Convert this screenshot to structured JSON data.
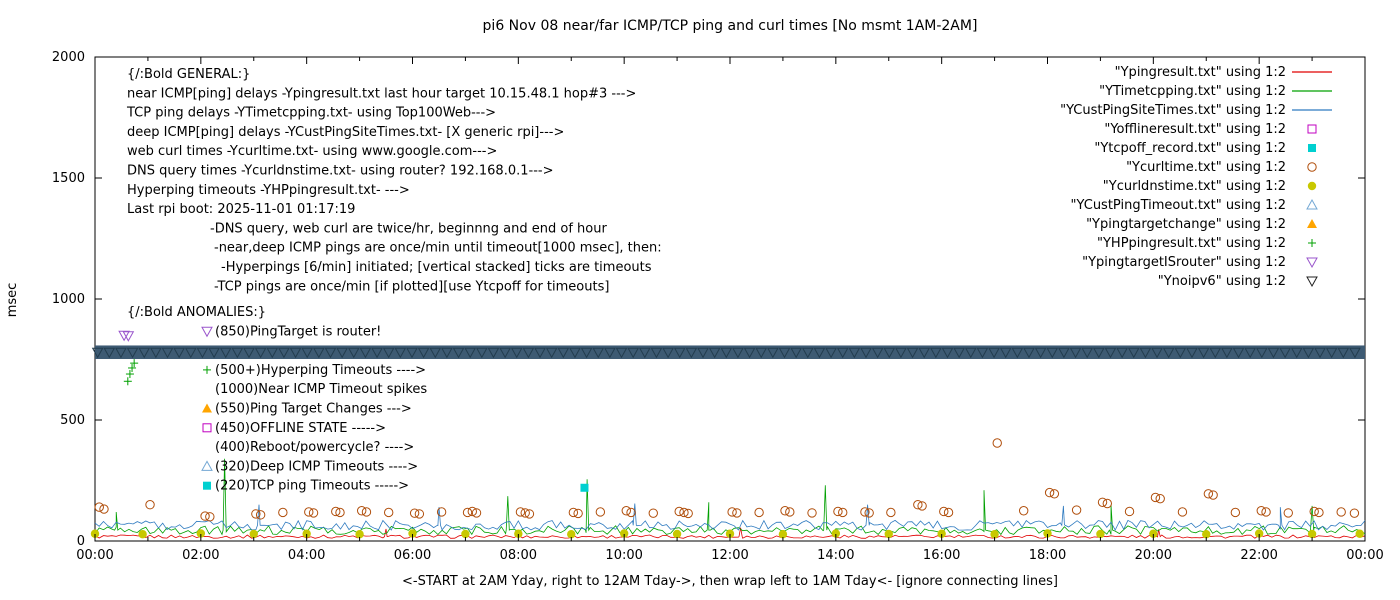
{
  "title": "pi6 Nov 08  near/far ICMP/TCP ping and curl times [No msmt 1AM-2AM]",
  "axes": {
    "ylabel": "msec",
    "xlabel": "<-START at 2AM Yday, right to 12AM Tday->, then wrap left to 1AM Tday<- [ignore connecting lines]",
    "y_ticks": [
      0,
      500,
      1000,
      1500,
      2000
    ],
    "y_range": [
      0,
      2000
    ],
    "x_range_hours": [
      0,
      24
    ],
    "x_tick_step_hours": 2,
    "x_tick_labels": [
      "00:00",
      "02:00",
      "04:00",
      "06:00",
      "08:00",
      "10:00",
      "12:00",
      "14:00",
      "16:00",
      "18:00",
      "20:00",
      "22:00",
      "00:00"
    ]
  },
  "legend": {
    "items": [
      {
        "label": "\"Ypingresult.txt\" using 1:2",
        "marker": "line",
        "color": "#e00000"
      },
      {
        "label": "\"YTimetcpping.txt\" using 1:2",
        "marker": "line",
        "color": "#00a000"
      },
      {
        "label": "\"YCustPingSiteTimes.txt\" using 1:2",
        "marker": "line",
        "color": "#2f7bc0"
      },
      {
        "label": "\"Yofflineresult.txt\" using 1:2",
        "marker": "square-open",
        "color": "#c000c0"
      },
      {
        "label": "\"Ytcpoff_record.txt\" using 1:2",
        "marker": "square-filled",
        "color": "#00d0d0"
      },
      {
        "label": "\"Ycurltime.txt\" using 1:2",
        "marker": "circle-open",
        "color": "#b04e0b"
      },
      {
        "label": "\"Ycurldnstime.txt\" using 1:2",
        "marker": "circle-filled",
        "color": "#c8c800"
      },
      {
        "label": "\"YCustPingTimeout.txt\" using 1:2",
        "marker": "triangle-up-open",
        "color": "#74a8d4"
      },
      {
        "label": "\"Ypingtargetchange\" using 1:2",
        "marker": "triangle-up-filled",
        "color": "#ffa500"
      },
      {
        "label": "\"YHPpingresult.txt\" using 1:2",
        "marker": "plus",
        "color": "#00a000"
      },
      {
        "label": "\"YpingtargetISrouter\" using 1:2",
        "marker": "triangle-down-open",
        "color": "#9955cc"
      },
      {
        "label": "\"Ynoipv6\" using 1:2",
        "marker": "triangle-down-open",
        "color": "#202020"
      }
    ]
  },
  "annotations": {
    "general_lines": [
      {
        "x": 127,
        "text": "{/:Bold GENERAL:}"
      },
      {
        "x": 127,
        "text": "near ICMP[ping] delays -Ypingresult.txt last hour target 10.15.48.1 hop#3 --->"
      },
      {
        "x": 127,
        "text": "TCP ping delays -YTimetcpping.txt- using Top100Web--->"
      },
      {
        "x": 127,
        "text": "deep ICMP[ping] delays -YCustPingSiteTimes.txt- [X generic rpi]--->"
      },
      {
        "x": 127,
        "text": "web curl times -Ycurltime.txt- using www.google.com--->"
      },
      {
        "x": 127,
        "text": "DNS query times -Ycurldnstime.txt- using router? 192.168.0.1--->"
      },
      {
        "x": 127,
        "text": "Hyperping timeouts -YHPpingresult.txt- --->"
      },
      {
        "x": 127,
        "text": "Last rpi boot: 2025-11-01 01:17:19"
      },
      {
        "x": 210,
        "text": "-DNS query, web curl are twice/hr, beginnng and end of hour"
      },
      {
        "x": 214,
        "text": "-near,deep ICMP pings are once/min until timeout[1000 msec], then:"
      },
      {
        "x": 221,
        "text": "-Hyperpings [6/min] initiated; [vertical stacked] ticks are timeouts"
      },
      {
        "x": 214,
        "text": "-TCP pings are once/min [if plotted][use Ytcpoff for timeouts]"
      }
    ],
    "anomalies_heading": "{/:Bold ANOMALIES:}",
    "anomalies_items": [
      {
        "row": 1,
        "marker": "triangle-down-open",
        "color": "#9955cc",
        "text": "(850)PingTarget is router!"
      },
      {
        "row": 3,
        "marker": "plus",
        "color": "#00a000",
        "text": "(500+)Hyperping Timeouts ---->"
      },
      {
        "row": 4,
        "marker": null,
        "color": null,
        "text": "(1000)Near ICMP Timeout spikes"
      },
      {
        "row": 5,
        "marker": "triangle-up-filled",
        "color": "#ffa500",
        "text": "(550)Ping Target Changes --->"
      },
      {
        "row": 6,
        "marker": "square-open",
        "color": "#c000c0",
        "text": "(450)OFFLINE STATE ----->"
      },
      {
        "row": 7,
        "marker": null,
        "color": null,
        "text": "(400)Reboot/powercycle? ---->"
      },
      {
        "row": 8,
        "marker": "triangle-up-open",
        "color": "#74a8d4",
        "text": "(320)Deep ICMP Timeouts ---->"
      },
      {
        "row": 9,
        "marker": "square-filled",
        "color": "#00d0d0",
        "text": "(220)TCP ping Timeouts ----->"
      }
    ]
  },
  "chart_data": {
    "type": "line",
    "x_unit": "hours since 2AM yesterday (wrapped)",
    "x_range": [
      0,
      24
    ],
    "y_range": [
      0,
      2000
    ],
    "grid": false,
    "legend_position": "top-right-inside",
    "series": [
      {
        "name": "Ypingresult.txt near ICMP ping (msec)",
        "color": "#e00000",
        "style": "line",
        "base": 18,
        "noise": 7,
        "spikes": [
          [
            5.5,
            50
          ],
          [
            12.2,
            55
          ],
          [
            20.1,
            48
          ]
        ]
      },
      {
        "name": "YTimetcpping.txt TCP ping (msec)",
        "color": "#00a000",
        "style": "line",
        "base": 45,
        "noise": 18,
        "spikes": [
          [
            0.4,
            120
          ],
          [
            2.45,
            340
          ],
          [
            7.8,
            185
          ],
          [
            9.3,
            255
          ],
          [
            11.6,
            160
          ],
          [
            13.8,
            230
          ],
          [
            16.8,
            210
          ],
          [
            19.2,
            150
          ],
          [
            23.0,
            145
          ]
        ]
      },
      {
        "name": "YCustPingSiteTimes.txt deep ICMP ping (msec)",
        "color": "#2f7bc0",
        "style": "line",
        "base": 65,
        "noise": 20,
        "spikes": [
          [
            3.1,
            150
          ],
          [
            6.5,
            140
          ],
          [
            10.2,
            155
          ],
          [
            14.6,
            150
          ],
          [
            18.3,
            145
          ],
          [
            22.4,
            140
          ]
        ]
      }
    ],
    "scatter": [
      {
        "name": "Ycurltime.txt web curl times (msec)",
        "color": "#b04e0b",
        "marker": "circle-open",
        "points": [
          [
            0.08,
            140
          ],
          [
            0.17,
            132
          ],
          [
            1.04,
            150
          ],
          [
            2.08,
            103
          ],
          [
            2.17,
            100
          ],
          [
            3.04,
            112
          ],
          [
            3.13,
            108
          ],
          [
            3.55,
            118
          ],
          [
            4.04,
            120
          ],
          [
            4.13,
            116
          ],
          [
            4.55,
            122
          ],
          [
            4.63,
            118
          ],
          [
            5.04,
            125
          ],
          [
            5.13,
            120
          ],
          [
            5.55,
            118
          ],
          [
            6.04,
            115
          ],
          [
            6.13,
            112
          ],
          [
            6.55,
            120
          ],
          [
            7.04,
            118
          ],
          [
            7.13,
            122
          ],
          [
            7.21,
            116
          ],
          [
            8.04,
            120
          ],
          [
            8.13,
            116
          ],
          [
            8.21,
            112
          ],
          [
            9.04,
            118
          ],
          [
            9.13,
            114
          ],
          [
            9.55,
            120
          ],
          [
            10.04,
            125
          ],
          [
            10.13,
            118
          ],
          [
            10.55,
            115
          ],
          [
            11.04,
            122
          ],
          [
            11.13,
            118
          ],
          [
            11.21,
            114
          ],
          [
            12.04,
            120
          ],
          [
            12.13,
            116
          ],
          [
            12.55,
            118
          ],
          [
            13.04,
            125
          ],
          [
            13.13,
            120
          ],
          [
            13.55,
            116
          ],
          [
            14.04,
            122
          ],
          [
            14.13,
            118
          ],
          [
            14.55,
            120
          ],
          [
            14.63,
            116
          ],
          [
            15.04,
            118
          ],
          [
            15.55,
            150
          ],
          [
            15.63,
            145
          ],
          [
            16.04,
            122
          ],
          [
            16.13,
            118
          ],
          [
            17.05,
            405
          ],
          [
            17.55,
            125
          ],
          [
            18.04,
            200
          ],
          [
            18.13,
            195
          ],
          [
            18.55,
            128
          ],
          [
            19.04,
            160
          ],
          [
            19.13,
            155
          ],
          [
            19.55,
            122
          ],
          [
            20.04,
            180
          ],
          [
            20.13,
            175
          ],
          [
            20.55,
            120
          ],
          [
            21.04,
            195
          ],
          [
            21.13,
            190
          ],
          [
            21.55,
            118
          ],
          [
            22.04,
            125
          ],
          [
            22.13,
            120
          ],
          [
            22.55,
            116
          ],
          [
            23.04,
            122
          ],
          [
            23.13,
            118
          ],
          [
            23.55,
            120
          ],
          [
            23.8,
            115
          ]
        ]
      },
      {
        "name": "Ycurldnstime.txt DNS query times (msec)",
        "color": "#c8c800",
        "marker": "circle-filled",
        "points": [
          [
            0,
            30
          ],
          [
            0.9,
            28
          ],
          [
            2,
            31
          ],
          [
            3,
            29
          ],
          [
            4,
            30
          ],
          [
            5,
            28
          ],
          [
            6,
            31
          ],
          [
            7,
            29
          ],
          [
            8,
            30
          ],
          [
            9,
            28
          ],
          [
            10,
            31
          ],
          [
            11,
            29
          ],
          [
            12,
            30
          ],
          [
            13,
            28
          ],
          [
            14,
            31
          ],
          [
            15,
            29
          ],
          [
            16,
            30
          ],
          [
            17,
            28
          ],
          [
            18,
            31
          ],
          [
            19,
            29
          ],
          [
            20,
            30
          ],
          [
            21,
            28
          ],
          [
            22,
            31
          ],
          [
            23,
            29
          ],
          [
            23.9,
            30
          ]
        ]
      },
      {
        "name": "Ytcpoff_record.txt TCP ping timeouts",
        "color": "#00d0d0",
        "marker": "square-filled",
        "points": [
          [
            9.25,
            220
          ]
        ]
      },
      {
        "name": "YHPpingresult.txt hyperping timeouts (stacked ticks)",
        "color": "#00a000",
        "marker": "plus",
        "points": [
          [
            0.62,
            660
          ],
          [
            0.66,
            690
          ],
          [
            0.7,
            715
          ],
          [
            0.74,
            735
          ]
        ]
      },
      {
        "name": "YpingtargetISrouter markers",
        "color": "#9955cc",
        "marker": "triangle-down-open",
        "points": [
          [
            0.55,
            850
          ],
          [
            0.63,
            848
          ]
        ]
      }
    ],
    "band": {
      "name": "Ynoipv6 no-ipv6-internet band",
      "color": "#3d5a73",
      "marker": "triangle-down-open",
      "marker_color": "#223c4e",
      "y_center": 780,
      "y_half_height": 28,
      "x_range": [
        0,
        24
      ]
    }
  }
}
